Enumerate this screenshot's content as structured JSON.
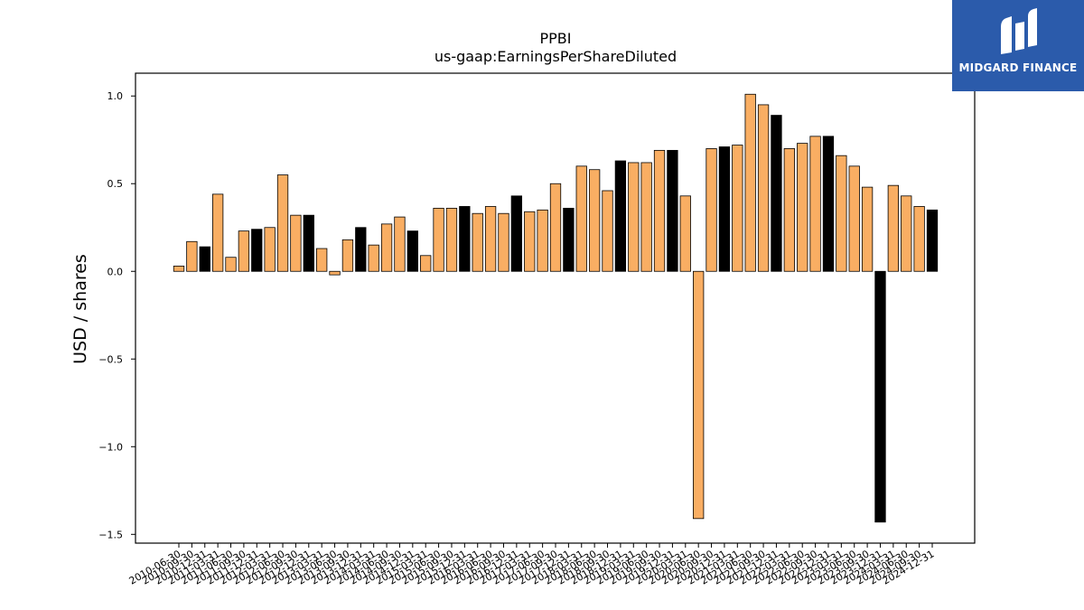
{
  "brand": {
    "name": "MIDGARD FINANCE",
    "color": "#2b5bab"
  },
  "chart_data": {
    "type": "bar",
    "title": "PPBI",
    "subtitle": "us-gaap:EarningsPerShareDiluted",
    "xlabel": "",
    "ylabel": "USD / shares",
    "ylim": [
      -1.55,
      1.13
    ],
    "yticks": [
      1.0,
      0.5,
      0.0,
      -0.5,
      -1.0,
      -1.5
    ],
    "ytick_labels": [
      "1.0",
      "0.5",
      "0.0",
      "−0.5",
      "−1.0",
      "−1.5"
    ],
    "grid": false,
    "colors": {
      "quarterly": "#f9ae63",
      "annual": "#000000"
    },
    "categories": [
      "2010-06-30",
      "2010-09-30",
      "2010-12-31",
      "2011-03-31",
      "2011-06-30",
      "2011-09-30",
      "2011-12-31",
      "2012-03-31",
      "2012-06-30",
      "2012-09-30",
      "2012-12-31",
      "2013-03-31",
      "2013-06-30",
      "2013-09-30",
      "2013-12-31",
      "2014-03-31",
      "2014-06-30",
      "2014-09-30",
      "2014-12-31",
      "2015-03-31",
      "2015-06-30",
      "2015-09-30",
      "2015-12-31",
      "2016-03-31",
      "2016-06-30",
      "2016-09-30",
      "2016-12-31",
      "2017-03-31",
      "2017-06-30",
      "2017-09-30",
      "2017-12-31",
      "2018-03-31",
      "2018-06-30",
      "2018-09-30",
      "2018-12-31",
      "2019-03-31",
      "2019-06-30",
      "2019-09-30",
      "2019-12-31",
      "2020-03-31",
      "2020-06-30",
      "2020-09-30",
      "2020-12-31",
      "2021-03-31",
      "2021-06-30",
      "2021-09-30",
      "2021-12-31",
      "2022-03-31",
      "2022-06-30",
      "2022-09-30",
      "2022-12-31",
      "2023-03-31",
      "2023-06-30",
      "2023-09-30",
      "2023-12-31",
      "2024-03-31",
      "2024-06-30",
      "2024-09-30",
      "2024-12-31"
    ],
    "values": [
      0.03,
      0.17,
      0.14,
      0.44,
      0.08,
      0.23,
      0.24,
      0.25,
      0.55,
      0.32,
      0.32,
      0.13,
      -0.02,
      0.18,
      0.25,
      0.15,
      0.27,
      0.31,
      0.23,
      0.09,
      0.36,
      0.36,
      0.37,
      0.33,
      0.37,
      0.33,
      0.43,
      0.34,
      0.35,
      0.5,
      0.36,
      0.6,
      0.58,
      0.46,
      0.63,
      0.62,
      0.62,
      0.69,
      0.69,
      0.43,
      -1.41,
      0.7,
      0.71,
      0.72,
      1.01,
      0.95,
      0.89,
      0.7,
      0.73,
      0.77,
      0.77,
      0.66,
      0.6,
      0.48,
      -1.43,
      0.49,
      0.43,
      0.37,
      0.35
    ],
    "annual_flags": [
      0,
      0,
      1,
      0,
      0,
      0,
      1,
      0,
      0,
      0,
      1,
      0,
      0,
      0,
      1,
      0,
      0,
      0,
      1,
      0,
      0,
      0,
      1,
      0,
      0,
      0,
      1,
      0,
      0,
      0,
      1,
      0,
      0,
      0,
      1,
      0,
      0,
      0,
      1,
      0,
      0,
      0,
      1,
      0,
      0,
      0,
      1,
      0,
      0,
      0,
      1,
      0,
      0,
      0,
      1,
      0,
      0,
      0,
      1
    ]
  }
}
